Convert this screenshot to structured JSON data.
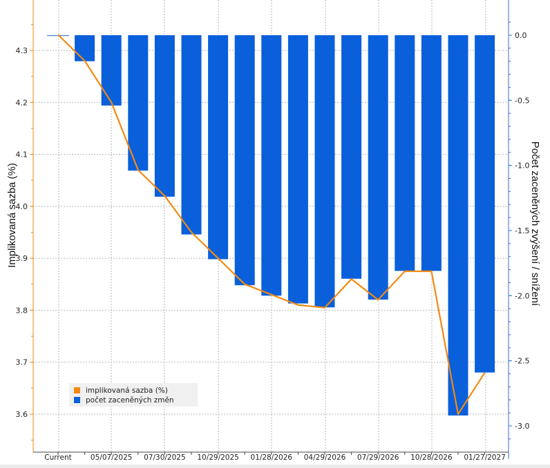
{
  "chart_data": {
    "type": "bar+line",
    "x_labels": [
      "Current",
      "",
      "05/07/2025",
      "",
      "07/30/2025",
      "",
      "10/29/2025",
      "",
      "01/28/2026",
      "",
      "04/29/2026",
      "",
      "07/29/2026",
      "",
      "10/28/2026",
      "",
      "01/27/2027"
    ],
    "series": [
      {
        "name": "implikovaná sazba (%)",
        "type": "line",
        "axis": "left",
        "color": "#f28a12",
        "values": [
          4.33,
          4.28,
          4.2,
          4.07,
          4.02,
          3.95,
          3.9,
          3.85,
          3.83,
          3.81,
          3.805,
          3.86,
          3.82,
          3.875,
          3.875,
          3.6,
          3.68
        ]
      },
      {
        "name": "počet zaceněných změn",
        "type": "bar",
        "axis": "right",
        "color": "#0a5fdb",
        "values": [
          0.0,
          -0.2,
          -0.54,
          -1.04,
          -1.24,
          -1.53,
          -1.72,
          -1.92,
          -2.0,
          -2.06,
          -2.09,
          -1.87,
          -2.03,
          -1.81,
          -1.81,
          -2.92,
          -2.59
        ]
      }
    ],
    "y_left": {
      "label": "Implikovaná sazba (%)",
      "ticks": [
        "3.6",
        "3.7",
        "3.8",
        "3.9",
        "4.0",
        "4.1",
        "4.2",
        "4.3"
      ],
      "range": [
        3.55,
        4.41
      ]
    },
    "y_right": {
      "label": "Počet zaceněných zvýšení / snížení",
      "ticks": [
        "0.0",
        "-0.5",
        "-1.0",
        "-1.5",
        "-2.0",
        "-2.5",
        "-3.0"
      ],
      "range": [
        -3.2,
        0.25
      ]
    },
    "legend": {
      "placement": "bottom-left"
    },
    "grid": true
  }
}
